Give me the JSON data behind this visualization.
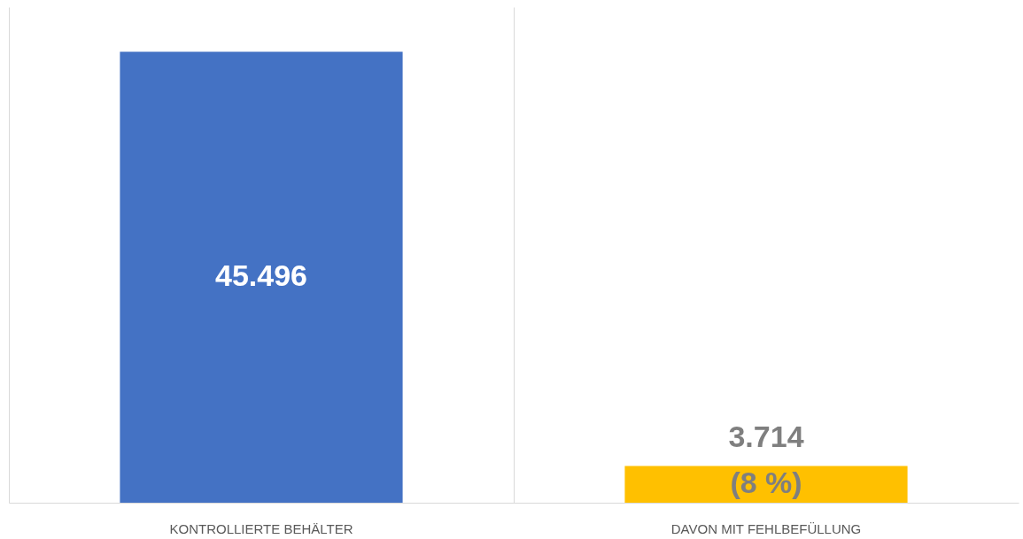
{
  "chart_data": {
    "type": "bar",
    "categories": [
      "KONTROLLIERTE BEHÄLTER",
      "DAVON MIT FEHLBEFÜLLUNG"
    ],
    "values": [
      45496,
      3714
    ],
    "colors": [
      "#4472c4",
      "#ffc000"
    ],
    "value_labels": [
      "45.496",
      "3.714"
    ],
    "annotations": [
      "(8 %)"
    ],
    "grid": "x"
  }
}
